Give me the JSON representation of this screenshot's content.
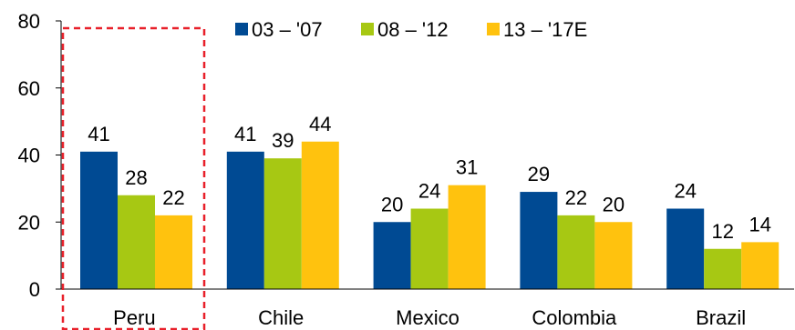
{
  "chart_data": {
    "type": "bar",
    "categories": [
      "Peru",
      "Chile",
      "Mexico",
      "Colombia",
      "Brazil"
    ],
    "series": [
      {
        "name": "03 – '07",
        "color": "#004A93",
        "values": [
          41,
          41,
          20,
          29,
          24
        ]
      },
      {
        "name": "08 – '12",
        "color": "#A7C813",
        "values": [
          28,
          39,
          24,
          22,
          12
        ]
      },
      {
        "name": "13 – '17E",
        "color": "#FFC20E",
        "values": [
          22,
          44,
          31,
          20,
          14
        ]
      }
    ],
    "yticks": [
      0,
      20,
      40,
      60,
      80
    ],
    "ylim": [
      0,
      80
    ],
    "legend_position": "top",
    "grid": false,
    "highlight": {
      "category": "Peru",
      "style": "dashed-box",
      "color": "#E8202A"
    }
  }
}
